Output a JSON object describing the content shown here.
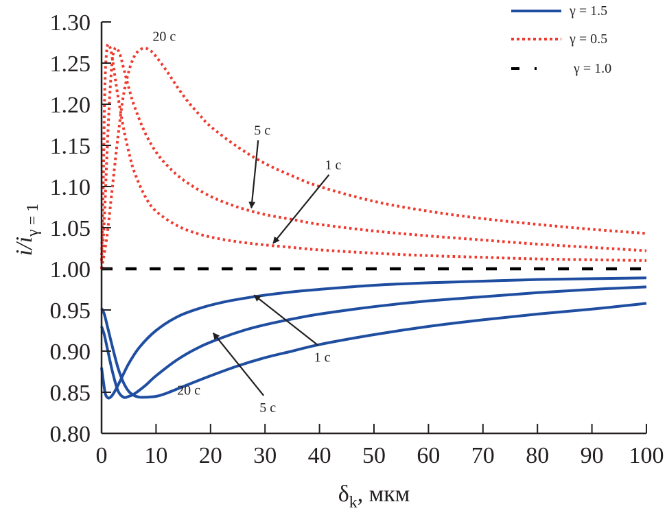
{
  "chart_data": {
    "type": "line",
    "title": "",
    "xlabel": "δk, мкм",
    "xlabel_main": "δ",
    "xlabel_sub": "k",
    "xlabel_unit": ", мкм",
    "ylabel": "i/iγ = 1",
    "ylabel_main": "i/i",
    "ylabel_sub": "γ = 1",
    "xlim": [
      0,
      100
    ],
    "ylim": [
      0.8,
      1.3
    ],
    "xticks": [
      "0",
      "10",
      "20",
      "30",
      "40",
      "50",
      "60",
      "70",
      "80",
      "90",
      "100"
    ],
    "xtick_values": [
      0,
      10,
      20,
      30,
      40,
      50,
      60,
      70,
      80,
      90,
      100
    ],
    "yticks": [
      "0.80",
      "0.85",
      "0.90",
      "0.95",
      "1.00",
      "1.05",
      "1.10",
      "1.15",
      "1.20",
      "1.25",
      "1.30"
    ],
    "ytick_values": [
      0.8,
      0.85,
      0.9,
      0.95,
      1.0,
      1.05,
      1.1,
      1.15,
      1.2,
      1.25,
      1.3
    ],
    "grid": false,
    "legend_position": "top-right",
    "colors": {
      "gamma_1_5": "#1f4ea1",
      "gamma_0_5": "#ee3a2e",
      "gamma_1_0": "#000000",
      "axis": "#231f20"
    },
    "series": [
      {
        "name": "γ = 1.5, 1 с",
        "group": "gamma_1_5",
        "style": "solid",
        "x": [
          0,
          0.3,
          0.7,
          1.2,
          1.8,
          2.5,
          3.5,
          5,
          7,
          10,
          14,
          18,
          22,
          26,
          30,
          35,
          40,
          50,
          60,
          70,
          80,
          90,
          100
        ],
        "y": [
          0.88,
          0.865,
          0.848,
          0.843,
          0.845,
          0.852,
          0.865,
          0.885,
          0.905,
          0.925,
          0.942,
          0.952,
          0.959,
          0.964,
          0.968,
          0.972,
          0.975,
          0.98,
          0.983,
          0.985,
          0.987,
          0.988,
          0.989
        ]
      },
      {
        "name": "γ = 1.5, 5 с",
        "group": "gamma_1_5",
        "style": "solid",
        "x": [
          0,
          0.5,
          1,
          2,
          3,
          4,
          5,
          6,
          8,
          10,
          14,
          18,
          22,
          26,
          30,
          35,
          40,
          50,
          60,
          70,
          80,
          90,
          100
        ],
        "y": [
          0.93,
          0.92,
          0.905,
          0.875,
          0.852,
          0.844,
          0.845,
          0.848,
          0.858,
          0.87,
          0.89,
          0.905,
          0.916,
          0.925,
          0.932,
          0.939,
          0.945,
          0.954,
          0.961,
          0.966,
          0.971,
          0.975,
          0.978
        ]
      },
      {
        "name": "γ = 1.5, 20 с",
        "group": "gamma_1_5",
        "style": "solid",
        "x": [
          0,
          0.5,
          1,
          2,
          3,
          4,
          5,
          6,
          7,
          8,
          10,
          12,
          15,
          20,
          25,
          30,
          35,
          40,
          50,
          60,
          70,
          80,
          90,
          100
        ],
        "y": [
          0.952,
          0.945,
          0.932,
          0.905,
          0.88,
          0.862,
          0.851,
          0.846,
          0.844,
          0.844,
          0.845,
          0.849,
          0.857,
          0.87,
          0.882,
          0.892,
          0.9,
          0.908,
          0.92,
          0.93,
          0.938,
          0.945,
          0.951,
          0.958
        ]
      },
      {
        "name": "γ = 0.5, 1 с",
        "group": "gamma_0_5",
        "style": "dotted",
        "x": [
          0,
          0.3,
          0.6,
          1.0,
          1.5,
          2.0,
          2.5,
          3,
          4,
          5,
          6,
          8,
          10,
          14,
          18,
          22,
          26,
          30,
          35,
          40,
          50,
          60,
          70,
          80,
          90,
          100
        ],
        "y": [
          1.01,
          1.1,
          1.22,
          1.268,
          1.27,
          1.255,
          1.232,
          1.21,
          1.172,
          1.142,
          1.118,
          1.088,
          1.07,
          1.052,
          1.042,
          1.036,
          1.032,
          1.029,
          1.026,
          1.023,
          1.019,
          1.016,
          1.014,
          1.012,
          1.011,
          1.01
        ]
      },
      {
        "name": "γ = 0.5, 5 с",
        "group": "gamma_0_5",
        "style": "dotted",
        "x": [
          0,
          0.5,
          1,
          1.5,
          2,
          2.5,
          3,
          3.5,
          4,
          5,
          6,
          8,
          10,
          12,
          15,
          20,
          25,
          30,
          35,
          40,
          50,
          60,
          70,
          80,
          90,
          100
        ],
        "y": [
          1.0,
          1.06,
          1.14,
          1.21,
          1.255,
          1.268,
          1.266,
          1.258,
          1.245,
          1.22,
          1.198,
          1.165,
          1.142,
          1.126,
          1.108,
          1.088,
          1.075,
          1.066,
          1.06,
          1.054,
          1.046,
          1.04,
          1.035,
          1.03,
          1.026,
          1.022
        ]
      },
      {
        "name": "γ = 0.5, 20 с",
        "group": "gamma_0_5",
        "style": "dotted",
        "x": [
          0,
          1,
          2,
          3,
          4,
          5,
          6,
          7,
          8,
          9,
          10,
          12,
          14,
          16,
          18,
          20,
          25,
          30,
          35,
          40,
          50,
          60,
          70,
          80,
          90,
          100
        ],
        "y": [
          1.0,
          1.04,
          1.1,
          1.16,
          1.21,
          1.24,
          1.258,
          1.266,
          1.268,
          1.265,
          1.258,
          1.24,
          1.22,
          1.202,
          1.187,
          1.173,
          1.148,
          1.128,
          1.113,
          1.1,
          1.082,
          1.07,
          1.061,
          1.054,
          1.048,
          1.043
        ]
      },
      {
        "name": "γ = 1.0",
        "group": "gamma_1_0",
        "style": "dashed",
        "x": [
          0,
          100
        ],
        "y": [
          1.0,
          1.0
        ]
      }
    ],
    "legend": [
      {
        "label": "γ = 1.5",
        "group": "gamma_1_5",
        "style": "solid"
      },
      {
        "label": "γ = 0.5",
        "group": "gamma_0_5",
        "style": "dotted"
      },
      {
        "label": "γ = 1.0",
        "group": "gamma_1_0",
        "style": "dashed"
      }
    ],
    "annotations": [
      {
        "text": "20 с",
        "x": 11.5,
        "y": 1.277,
        "target": null
      },
      {
        "text": "5 с",
        "x": 29.5,
        "y": 1.163,
        "target": [
          27.5,
          1.074
        ]
      },
      {
        "text": "1 с",
        "x": 42.5,
        "y": 1.121,
        "target": [
          31.5,
          1.031
        ]
      },
      {
        "text": "20 с",
        "x": 16,
        "y": 0.847,
        "target": null
      },
      {
        "text": "1 с",
        "x": 40.5,
        "y": 0.887,
        "target": [
          28,
          0.968
        ]
      },
      {
        "text": "5 с",
        "x": 30.5,
        "y": 0.826,
        "target": [
          20.5,
          0.922
        ]
      }
    ]
  }
}
